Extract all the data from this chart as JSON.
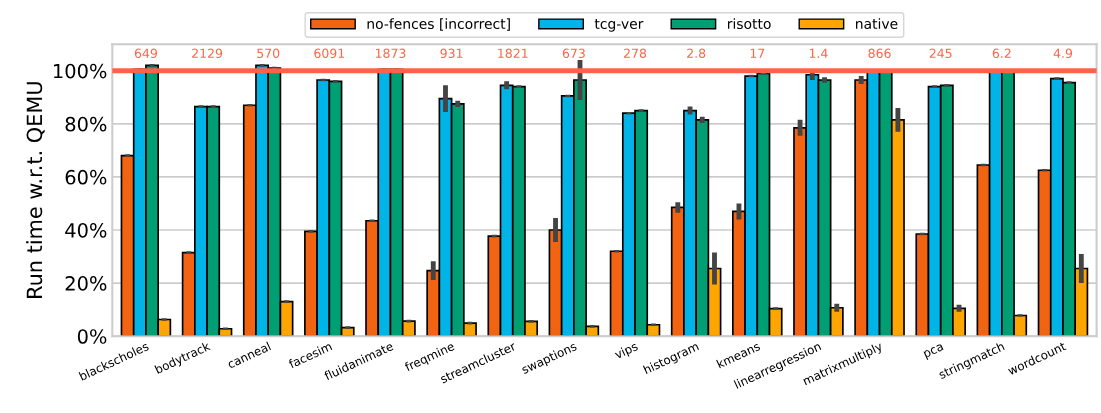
{
  "chart_data": {
    "type": "bar",
    "ylabel": "Run time w.r.t. QEMU",
    "categories": [
      "blackscholes",
      "bodytrack",
      "canneal",
      "facesim",
      "fluidanimate",
      "freqmine",
      "streamcluster",
      "swaptions",
      "vips",
      "histogram",
      "kmeans",
      "linearregression",
      "matrixmultiply",
      "pca",
      "stringmatch",
      "wordcount"
    ],
    "series": [
      {
        "name": "no-fences [incorrect]",
        "color": "#f26411",
        "values": [
          68,
          31.5,
          87,
          39.5,
          43.5,
          24.7,
          37.7,
          40,
          32,
          48.5,
          47,
          78.5,
          96.5,
          38.5,
          64.5,
          62.5
        ],
        "errors": [
          0.5,
          0.5,
          0.5,
          0.5,
          0.5,
          3.5,
          0.5,
          4.5,
          0.5,
          2,
          3,
          3,
          1.5,
          0.5,
          0.5,
          0.5
        ]
      },
      {
        "name": "tcg-ver",
        "color": "#00b4e8",
        "values": [
          100.5,
          86.5,
          102,
          96.5,
          100.5,
          89.5,
          94.5,
          90.5,
          84,
          85,
          98,
          98.5,
          100,
          94,
          100,
          97
        ],
        "errors": [
          0.5,
          0.5,
          0.5,
          0.5,
          0.5,
          5,
          1.5,
          0.5,
          0.5,
          1.5,
          0.5,
          2,
          0.5,
          0.5,
          0.5,
          0.5
        ]
      },
      {
        "name": "risotto",
        "color": "#009e73",
        "values": [
          102,
          86.5,
          101,
          96,
          100.5,
          87.5,
          94,
          96.5,
          85,
          81.5,
          99,
          96.5,
          100,
          94.5,
          100,
          95.5
        ],
        "errors": [
          0.5,
          0.5,
          0.5,
          0.5,
          0.5,
          1.2,
          0.5,
          7.5,
          0.5,
          1.2,
          0.5,
          1,
          0.5,
          0.5,
          0.5,
          0.5
        ]
      },
      {
        "name": "native",
        "color": "#ffa500",
        "values": [
          6.3,
          2.8,
          13,
          3.2,
          5.7,
          4.9,
          5.6,
          3.7,
          4.3,
          25.5,
          10.4,
          10.7,
          81.5,
          10.5,
          7.8,
          25.5
        ],
        "errors": [
          0.5,
          0.5,
          0.5,
          0.5,
          0.5,
          0.5,
          0.5,
          0.5,
          0.5,
          6,
          0.5,
          1.5,
          4.5,
          1.3,
          0.5,
          5.5
        ]
      }
    ],
    "ylim": [
      0,
      110
    ],
    "yticks": [
      {
        "value": 0,
        "label": "0%"
      },
      {
        "value": 20,
        "label": "20%"
      },
      {
        "value": 40,
        "label": "40%"
      },
      {
        "value": 60,
        "label": "60%"
      },
      {
        "value": 80,
        "label": "80%"
      },
      {
        "value": 100,
        "label": "100%"
      }
    ],
    "ref_lines": [
      {
        "axis": "y",
        "value": 100,
        "color": "#ff6347"
      }
    ],
    "annotations": [
      "649",
      "2129",
      "570",
      "6091",
      "1873",
      "931",
      "1821",
      "673",
      "278",
      "2.8",
      "17",
      "1.4",
      "866",
      "245",
      "6.2",
      "4.9"
    ],
    "grid": "y",
    "legend": "top"
  }
}
